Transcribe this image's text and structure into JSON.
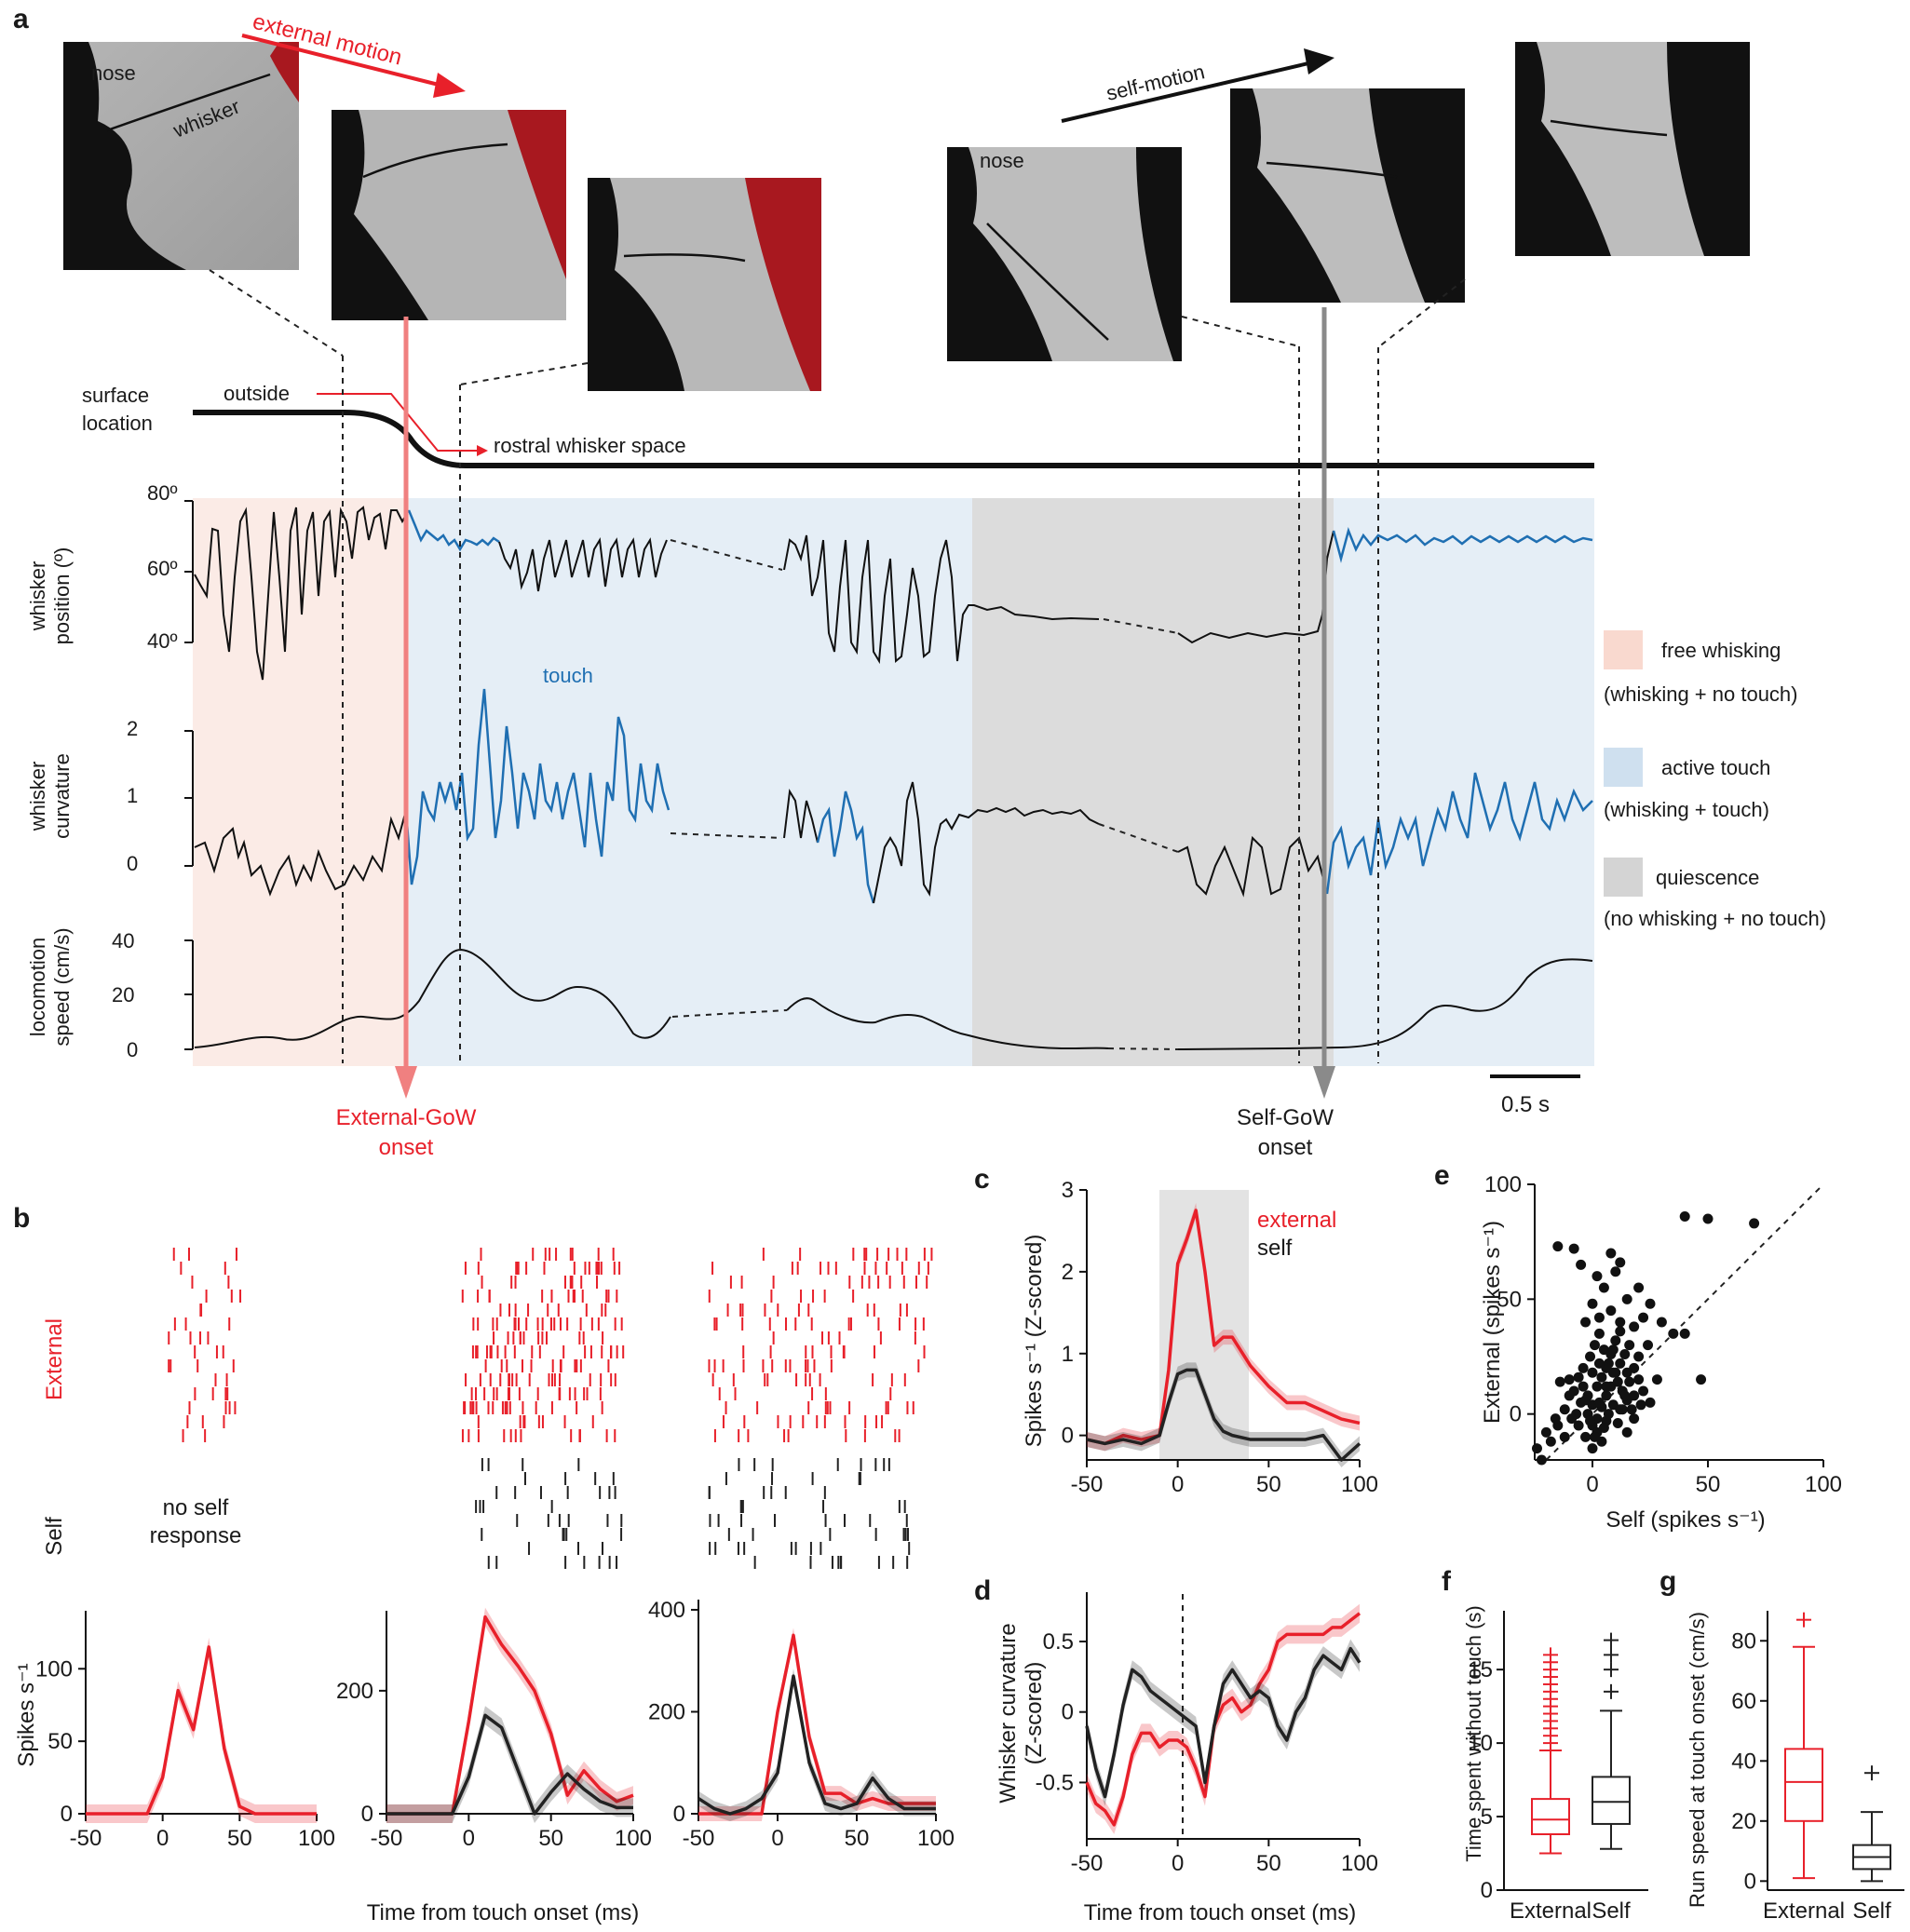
{
  "panel_labels": [
    "a",
    "b",
    "c",
    "d",
    "e",
    "f",
    "g"
  ],
  "panel_a": {
    "photo_labels": {
      "nose": "nose",
      "whisker": "whisker",
      "nose2": "nose"
    },
    "arrows": {
      "external": "external motion",
      "self": "self-motion"
    },
    "surface": {
      "label_line1": "surface",
      "label_line2": "location",
      "outside": "outside",
      "rostral": "rostral whisker space"
    },
    "whisker_position": {
      "ylabel_line1": "whisker",
      "ylabel_line2": "position (º)",
      "ticks": [
        "80º",
        "60º",
        "40º"
      ]
    },
    "whisker_curvature": {
      "ylabel_line1": "whisker",
      "ylabel_line2": "curvature",
      "ticks": [
        "2",
        "1",
        "0"
      ],
      "touch_label": "touch"
    },
    "locomotion": {
      "ylabel_line1": "locomotion",
      "ylabel_line2": "speed (cm/s)",
      "ticks": [
        "40",
        "20",
        "0"
      ]
    },
    "legend": [
      {
        "name": "free whisking",
        "desc": "(whisking + no touch)",
        "color": "#f9d9cf"
      },
      {
        "name": "active touch",
        "desc": "(whisking + touch)",
        "color": "#cfe0ef"
      },
      {
        "name": "quiescence",
        "desc": "(no whisking + no touch)",
        "color": "#d4d4d4"
      }
    ],
    "scale_bar": "0.5 s",
    "external_onset": [
      "External-GoW",
      "onset"
    ],
    "self_onset": [
      "Self-GoW",
      "onset"
    ]
  },
  "panel_b": {
    "row_labels": {
      "external": "External",
      "self": "Self"
    },
    "no_self": [
      "no self",
      "response"
    ],
    "ylabel": "Spikes s⁻¹",
    "xlabel": "Time from touch onset (ms)",
    "xticks": [
      "-50",
      "0",
      "50",
      "100"
    ],
    "plot1_yticks": [
      "0",
      "50",
      "100"
    ],
    "plot2_yticks": [
      "0",
      "200"
    ],
    "plot3_yticks": [
      "0",
      "200",
      "400"
    ]
  },
  "chart_data": [
    {
      "type": "line",
      "panel": "b1",
      "x": [
        -50,
        -40,
        -30,
        -20,
        -10,
        0,
        10,
        20,
        30,
        40,
        50,
        60,
        70,
        80,
        90,
        100
      ],
      "series": [
        {
          "name": "External",
          "color": "#e8202a",
          "values": [
            0,
            0,
            0,
            0,
            0,
            25,
            85,
            58,
            115,
            45,
            5,
            0,
            0,
            0,
            0,
            0
          ]
        }
      ],
      "ylim": [
        0,
        140
      ]
    },
    {
      "type": "line",
      "panel": "b2",
      "x": [
        -50,
        -40,
        -30,
        -20,
        -10,
        0,
        10,
        20,
        30,
        40,
        50,
        60,
        70,
        80,
        90,
        100
      ],
      "series": [
        {
          "name": "External",
          "color": "#e8202a",
          "values": [
            0,
            0,
            0,
            0,
            0,
            150,
            320,
            275,
            240,
            200,
            130,
            30,
            70,
            40,
            20,
            30
          ]
        },
        {
          "name": "Self",
          "color": "#222222",
          "values": [
            0,
            0,
            0,
            0,
            0,
            60,
            160,
            140,
            70,
            0,
            35,
            65,
            40,
            20,
            10,
            10
          ]
        }
      ],
      "ylim": [
        0,
        330
      ]
    },
    {
      "type": "line",
      "panel": "b3",
      "x": [
        -50,
        -40,
        -30,
        -20,
        -10,
        0,
        10,
        20,
        30,
        40,
        50,
        60,
        70,
        80,
        90,
        100
      ],
      "series": [
        {
          "name": "External",
          "color": "#e8202a",
          "values": [
            0,
            0,
            0,
            0,
            0,
            200,
            350,
            150,
            40,
            40,
            20,
            30,
            20,
            20,
            20,
            20
          ]
        },
        {
          "name": "Self",
          "color": "#222222",
          "values": [
            30,
            10,
            0,
            10,
            30,
            80,
            270,
            100,
            20,
            10,
            20,
            70,
            30,
            10,
            10,
            10
          ]
        }
      ],
      "ylim": [
        0,
        420
      ]
    },
    {
      "type": "line",
      "panel": "c",
      "ylabel": "Spikes s⁻¹ (Z-scored)",
      "x": [
        -50,
        -40,
        -30,
        -20,
        -10,
        -5,
        0,
        5,
        10,
        15,
        20,
        25,
        30,
        40,
        50,
        60,
        70,
        80,
        90,
        100
      ],
      "series": [
        {
          "name": "external",
          "color": "#e8202a",
          "values": [
            -0.05,
            -0.1,
            0,
            -0.05,
            0,
            0.8,
            2.1,
            2.4,
            2.75,
            2.0,
            1.1,
            1.2,
            1.2,
            0.85,
            0.6,
            0.4,
            0.4,
            0.3,
            0.2,
            0.15
          ]
        },
        {
          "name": "self",
          "color": "#222222",
          "values": [
            -0.05,
            -0.1,
            -0.05,
            -0.1,
            0,
            0.4,
            0.75,
            0.8,
            0.8,
            0.5,
            0.2,
            0.05,
            0,
            -0.05,
            -0.05,
            -0.05,
            -0.05,
            0,
            -0.3,
            -0.1
          ]
        }
      ],
      "xticks": [
        "-50",
        "0",
        "50",
        "100"
      ],
      "yticks": [
        "0",
        "1",
        "2",
        "3"
      ],
      "ylim": [
        -0.3,
        3
      ],
      "legend": [
        "external",
        "self"
      ]
    },
    {
      "type": "line",
      "panel": "d",
      "ylabel": [
        "Whisker curvature",
        "(Z-scored)"
      ],
      "xlabel": "Time from touch onset (ms)",
      "x": [
        -50,
        -45,
        -40,
        -35,
        -30,
        -25,
        -20,
        -15,
        -10,
        -5,
        0,
        5,
        10,
        15,
        20,
        25,
        30,
        35,
        40,
        45,
        50,
        55,
        60,
        65,
        70,
        75,
        80,
        85,
        90,
        95,
        100
      ],
      "series": [
        {
          "name": "External",
          "color": "#e8202a",
          "values": [
            -0.5,
            -0.65,
            -0.7,
            -0.8,
            -0.6,
            -0.3,
            -0.15,
            -0.15,
            -0.25,
            -0.2,
            -0.2,
            -0.25,
            -0.4,
            -0.6,
            -0.1,
            0.05,
            0.1,
            0.0,
            0.05,
            0.2,
            0.3,
            0.5,
            0.55,
            0.55,
            0.55,
            0.55,
            0.55,
            0.6,
            0.6,
            0.65,
            0.7
          ]
        },
        {
          "name": "Self",
          "color": "#222222",
          "values": [
            -0.1,
            -0.4,
            -0.6,
            -0.3,
            0.05,
            0.3,
            0.25,
            0.15,
            0.1,
            0.05,
            0.0,
            -0.05,
            -0.1,
            -0.5,
            -0.1,
            0.2,
            0.3,
            0.2,
            0.1,
            0.15,
            0.1,
            -0.1,
            -0.2,
            0.0,
            0.1,
            0.3,
            0.4,
            0.35,
            0.3,
            0.45,
            0.35
          ]
        }
      ],
      "xticks": [
        "-50",
        "0",
        "50",
        "100"
      ],
      "yticks": [
        "-0.5",
        "0",
        "0.5"
      ],
      "ylim": [
        -0.9,
        0.85
      ]
    },
    {
      "type": "scatter",
      "panel": "e",
      "xlabel": "Self (spikes s⁻¹)",
      "ylabel": "External (spikes s⁻¹)",
      "xticks": [
        "0",
        "50",
        "100"
      ],
      "yticks": [
        "0",
        "50",
        "100"
      ],
      "xlim": [
        -25,
        100
      ],
      "ylim": [
        -20,
        100
      ],
      "points": [
        [
          -15,
          73
        ],
        [
          -8,
          72
        ],
        [
          -5,
          65
        ],
        [
          8,
          70
        ],
        [
          12,
          66
        ],
        [
          2,
          60
        ],
        [
          10,
          62
        ],
        [
          40,
          86
        ],
        [
          50,
          85
        ],
        [
          70,
          83
        ],
        [
          20,
          55
        ],
        [
          15,
          50
        ],
        [
          5,
          55
        ],
        [
          0,
          48
        ],
        [
          -3,
          40
        ],
        [
          3,
          42
        ],
        [
          8,
          45
        ],
        [
          12,
          40
        ],
        [
          18,
          38
        ],
        [
          22,
          42
        ],
        [
          25,
          48
        ],
        [
          30,
          40
        ],
        [
          35,
          35
        ],
        [
          40,
          35
        ],
        [
          47,
          15
        ],
        [
          -10,
          15
        ],
        [
          -8,
          10
        ],
        [
          -5,
          5
        ],
        [
          -2,
          0
        ],
        [
          0,
          -5
        ],
        [
          2,
          -2
        ],
        [
          4,
          3
        ],
        [
          6,
          8
        ],
        [
          8,
          12
        ],
        [
          10,
          18
        ],
        [
          12,
          22
        ],
        [
          14,
          26
        ],
        [
          16,
          30
        ],
        [
          18,
          20
        ],
        [
          20,
          15
        ],
        [
          22,
          10
        ],
        [
          25,
          5
        ],
        [
          28,
          15
        ],
        [
          -4,
          20
        ],
        [
          -1,
          25
        ],
        [
          1,
          30
        ],
        [
          3,
          35
        ],
        [
          5,
          28
        ],
        [
          7,
          22
        ],
        [
          9,
          18
        ],
        [
          11,
          14
        ],
        [
          13,
          10
        ],
        [
          15,
          6
        ],
        [
          17,
          2
        ],
        [
          -6,
          -5
        ],
        [
          -3,
          -10
        ],
        [
          0,
          -15
        ],
        [
          2,
          -8
        ],
        [
          4,
          -12
        ],
        [
          6,
          -3
        ],
        [
          -20,
          -8
        ],
        [
          -24,
          -15
        ],
        [
          -22,
          -20
        ],
        [
          -18,
          -12
        ],
        [
          -15,
          -5
        ],
        [
          -12,
          2
        ],
        [
          -10,
          8
        ],
        [
          -7,
          0
        ],
        [
          -4,
          12
        ],
        [
          -2,
          8
        ],
        [
          0,
          4
        ],
        [
          2,
          12
        ],
        [
          4,
          16
        ],
        [
          6,
          20
        ],
        [
          8,
          26
        ],
        [
          10,
          32
        ],
        [
          12,
          36
        ],
        [
          14,
          8
        ],
        [
          16,
          14
        ],
        [
          18,
          -2
        ],
        [
          20,
          25
        ],
        [
          24,
          30
        ],
        [
          -1,
          -3
        ],
        [
          1,
          -10
        ],
        [
          3,
          5
        ],
        [
          5,
          -6
        ],
        [
          7,
          0
        ],
        [
          9,
          4
        ],
        [
          11,
          -4
        ],
        [
          13,
          2
        ],
        [
          15,
          -8
        ],
        [
          -12,
          -10
        ],
        [
          -9,
          -2
        ],
        [
          -6,
          16
        ],
        [
          -3,
          6
        ],
        [
          0,
          18
        ],
        [
          3,
          22
        ],
        [
          6,
          12
        ],
        [
          9,
          28
        ],
        [
          12,
          2
        ],
        [
          15,
          18
        ],
        [
          18,
          8
        ],
        [
          21,
          4
        ],
        [
          -16,
          -2
        ],
        [
          -14,
          14
        ]
      ],
      "reference_line": "unity (dashed)"
    },
    {
      "type": "box",
      "panel": "f",
      "ylabel": "Time spent without touch (s)",
      "categories": [
        "External",
        "Self"
      ],
      "yticks": [
        "0",
        "5",
        "10",
        "15"
      ],
      "ylim": [
        0,
        19
      ],
      "boxes": [
        {
          "name": "External",
          "color": "#e8202a",
          "whisker_low": 2.5,
          "q1": 3.8,
          "median": 4.8,
          "q3": 6.2,
          "whisker_high": 9.5,
          "outliers": [
            10.0,
            10.5,
            11.0,
            11.5,
            12.0,
            12.5,
            13.0,
            13.5,
            14.0,
            14.5,
            15.0,
            15.5,
            16.0
          ]
        },
        {
          "name": "Self",
          "color": "#222222",
          "whisker_low": 2.8,
          "q1": 4.5,
          "median": 6.0,
          "q3": 7.7,
          "whisker_high": 12.2,
          "outliers": [
            13.5,
            15.0,
            16.0,
            17.0
          ]
        }
      ]
    },
    {
      "type": "box",
      "panel": "g",
      "ylabel": "Run speed at touch onset (cm/s)",
      "categories": [
        "External",
        "Self"
      ],
      "yticks": [
        "0",
        "20",
        "40",
        "60",
        "80"
      ],
      "ylim": [
        -3,
        90
      ],
      "boxes": [
        {
          "name": "External",
          "color": "#e8202a",
          "whisker_low": 1,
          "q1": 20,
          "median": 33,
          "q3": 44,
          "whisker_high": 78,
          "outliers": [
            87
          ]
        },
        {
          "name": "Self",
          "color": "#222222",
          "whisker_low": 0,
          "q1": 4,
          "median": 8,
          "q3": 12,
          "whisker_high": 23,
          "outliers": [
            36
          ]
        }
      ]
    }
  ]
}
